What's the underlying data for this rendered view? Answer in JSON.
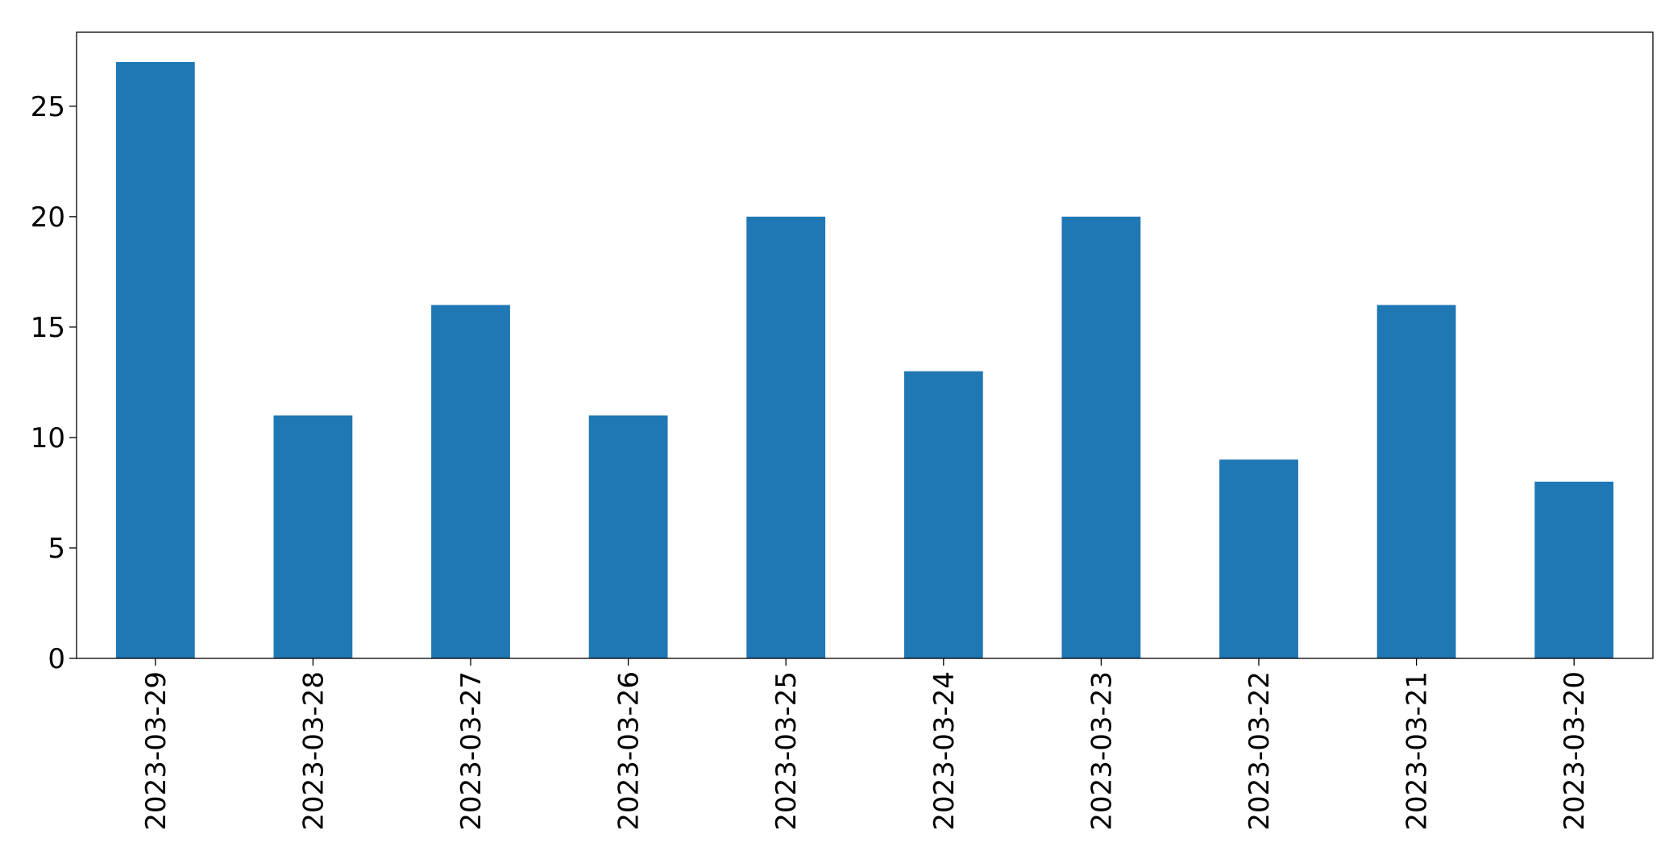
{
  "chart_data": {
    "type": "bar",
    "categories": [
      "2023-03-29",
      "2023-03-28",
      "2023-03-27",
      "2023-03-26",
      "2023-03-25",
      "2023-03-24",
      "2023-03-23",
      "2023-03-22",
      "2023-03-21",
      "2023-03-20"
    ],
    "values": [
      27,
      11,
      16,
      11,
      20,
      13,
      20,
      9,
      16,
      8
    ],
    "color": "#1f77b4",
    "ylim": [
      0,
      28.35
    ],
    "yticks": [
      0,
      5,
      10,
      15,
      20,
      25
    ],
    "grid": false
  }
}
